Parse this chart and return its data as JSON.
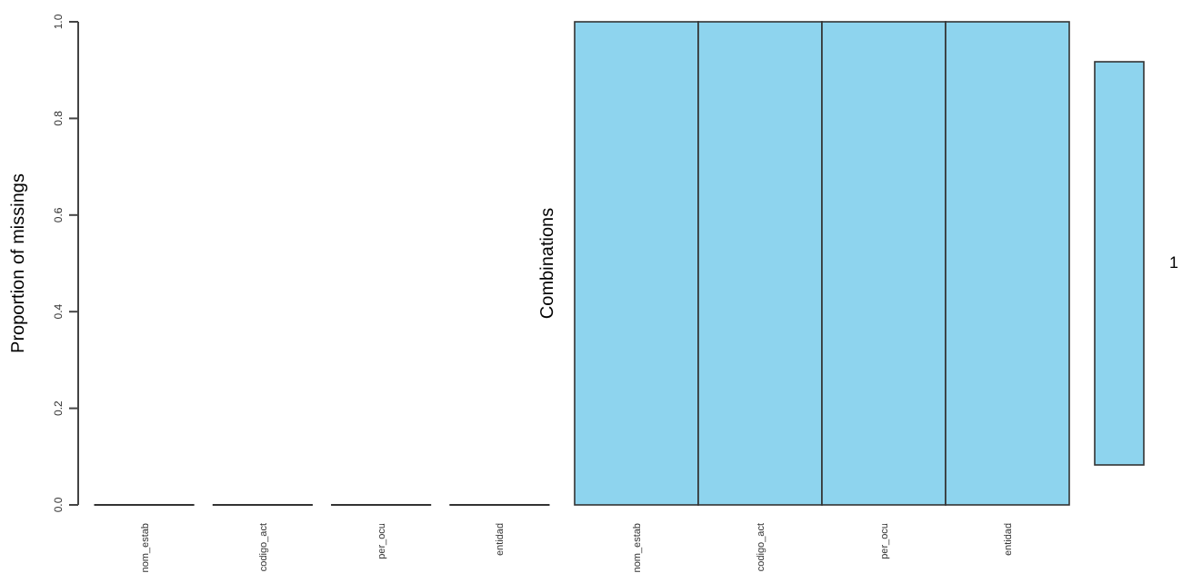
{
  "chart_data": [
    {
      "type": "bar",
      "ylabel": "Proportion of missings",
      "categories": [
        "nom_estab",
        "codigo_act",
        "per_ocu",
        "entidad"
      ],
      "values": [
        0,
        0,
        0,
        0
      ],
      "color": "#8ed4ee",
      "ylim": [
        0,
        1
      ],
      "yticks": [
        {
          "value": 0,
          "label": "0.0"
        },
        {
          "value": 0.2,
          "label": "0.2"
        },
        {
          "value": 0.4,
          "label": "0.4"
        },
        {
          "value": 0.6,
          "label": "0.6"
        },
        {
          "value": 0.8,
          "label": "0.8"
        },
        {
          "value": 1,
          "label": "1.0"
        }
      ],
      "grid": false
    },
    {
      "type": "other",
      "ylabel": "Combinations",
      "categories": [
        "nom_estab",
        "codigo_act",
        "per_ocu",
        "entidad"
      ],
      "color": "#8ed4ee",
      "annotations": [
        "1"
      ]
    }
  ]
}
